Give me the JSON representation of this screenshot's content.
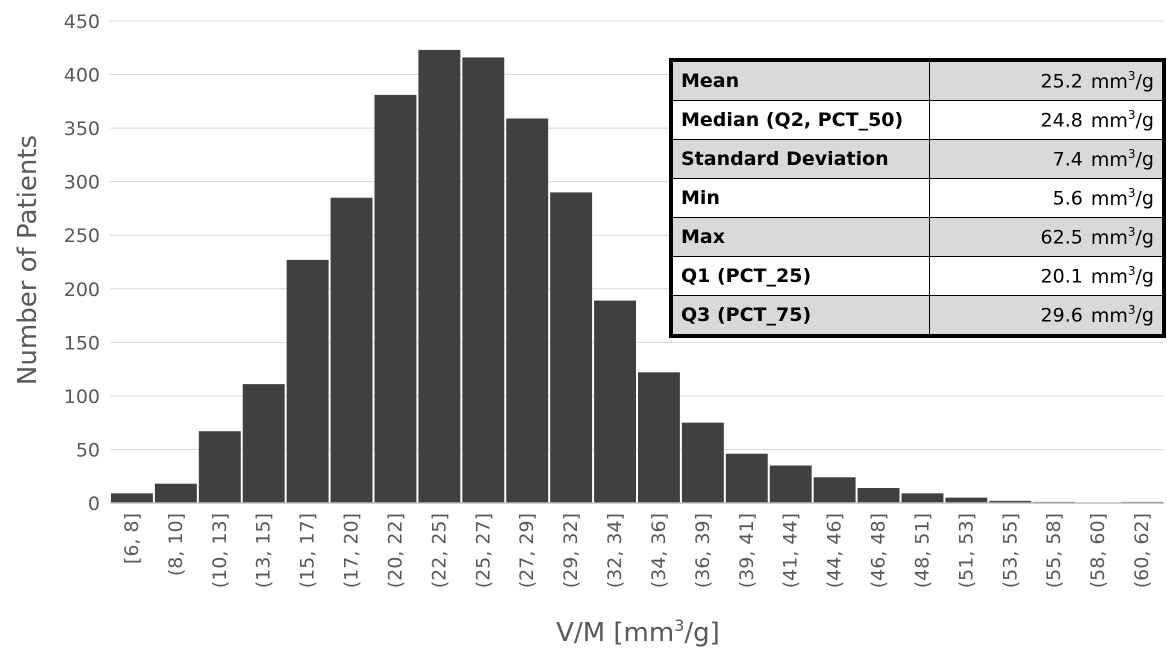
{
  "chart_data": {
    "type": "bar",
    "ylabel": "Number of Patients",
    "xlabel_prefix": "V/M [mm",
    "xlabel_sup": "3",
    "xlabel_suffix": "/g]",
    "ylim": [
      0,
      450
    ],
    "yticks": [
      0,
      50,
      100,
      150,
      200,
      250,
      300,
      350,
      400,
      450
    ],
    "grid": true,
    "bar_color": "#404040",
    "categories": [
      "[6, 8]",
      "(8, 10]",
      "(10, 13]",
      "(13, 15]",
      "(15, 17]",
      "(17, 20]",
      "(20, 22]",
      "(22, 25]",
      "(25, 27]",
      "(27, 29]",
      "(29, 32]",
      "(32, 34]",
      "(34, 36]",
      "(36, 39]",
      "(39, 41]",
      "(41, 44]",
      "(44, 46]",
      "(46, 48]",
      "(48, 51]",
      "(51, 53]",
      "(53, 55]",
      "(55, 58]",
      "(58, 60]",
      "(60, 62]"
    ],
    "values": [
      9,
      18,
      67,
      111,
      227,
      285,
      381,
      423,
      416,
      359,
      290,
      189,
      122,
      75,
      46,
      35,
      24,
      14,
      9,
      5,
      2,
      1,
      0,
      1
    ]
  },
  "stats_table": {
    "unit_prefix": "mm",
    "unit_sup": "3",
    "unit_suffix": "/g",
    "rows": [
      {
        "label": "Mean",
        "value": "25.2"
      },
      {
        "label": "Median (Q2, PCT_50)",
        "value": "24.8"
      },
      {
        "label": "Standard Deviation",
        "value": "7.4"
      },
      {
        "label": "Min",
        "value": "5.6"
      },
      {
        "label": "Max",
        "value": "62.5"
      },
      {
        "label": "Q1 (PCT_25)",
        "value": "20.1"
      },
      {
        "label": "Q3 (PCT_75)",
        "value": "29.6"
      }
    ]
  }
}
